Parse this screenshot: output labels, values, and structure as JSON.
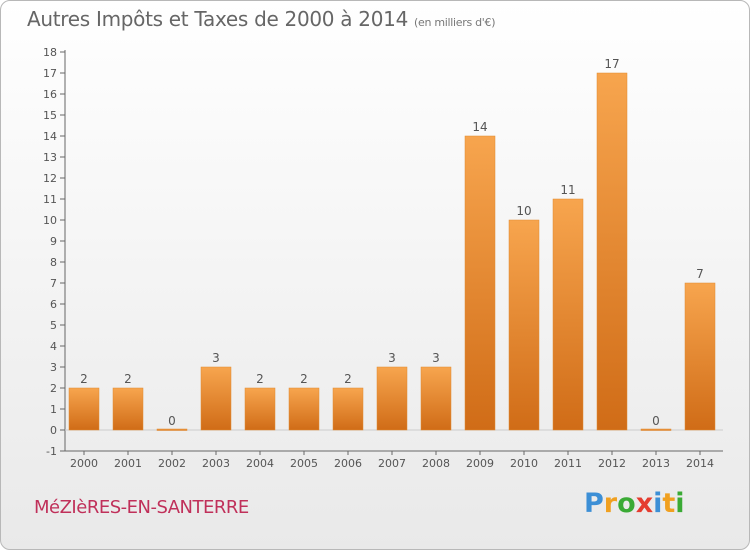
{
  "chart_data": {
    "type": "bar",
    "title": "Autres Impôts et Taxes de 2000 à 2014",
    "subtitle": "(en milliers d'€)",
    "categories": [
      "2000",
      "2001",
      "2002",
      "2003",
      "2004",
      "2005",
      "2006",
      "2007",
      "2008",
      "2009",
      "2010",
      "2011",
      "2012",
      "2013",
      "2014"
    ],
    "values": [
      2,
      2,
      0,
      3,
      2,
      2,
      2,
      3,
      3,
      14,
      10,
      11,
      17,
      0,
      7
    ],
    "ylim": [
      -1,
      18
    ],
    "yticks": [
      -1,
      0,
      1,
      2,
      3,
      4,
      5,
      6,
      7,
      8,
      9,
      10,
      11,
      12,
      13,
      14,
      15,
      16,
      17,
      18
    ],
    "grid": false,
    "bar_color_top": "#f7a54e",
    "bar_color_bottom": "#d06c17",
    "axis_color": "#666666"
  },
  "footer": {
    "commune": "MéZIèRES-EN-SANTERRE",
    "brand": [
      "P",
      "r",
      "o",
      "x",
      "i",
      "t",
      "i"
    ],
    "brand_colors": [
      "#3c8fd6",
      "#f0a020",
      "#3aaa35",
      "#e53c2f",
      "#3c8fd6",
      "#f0a020",
      "#3aaa35"
    ]
  }
}
